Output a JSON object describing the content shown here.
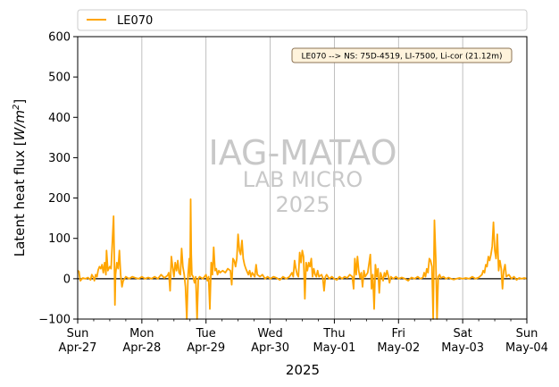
{
  "chart_data": {
    "type": "line",
    "xlabel": "2025",
    "ylabel": "Latent heat flux [W/m²]",
    "ylabel_parts": {
      "text": "Latent heat flux [",
      "unit": "W/m",
      "sup": "2",
      "close": "]"
    },
    "ylim": [
      -100,
      600
    ],
    "yticks": [
      -100,
      0,
      100,
      200,
      300,
      400,
      500,
      600
    ],
    "xlim_days": [
      0,
      7
    ],
    "xticks": [
      {
        "day": 0,
        "weekday": "Sun",
        "date": "Apr-27"
      },
      {
        "day": 1,
        "weekday": "Mon",
        "date": "Apr-28"
      },
      {
        "day": 2,
        "weekday": "Tue",
        "date": "Apr-29"
      },
      {
        "day": 3,
        "weekday": "Wed",
        "date": "Apr-30"
      },
      {
        "day": 4,
        "weekday": "Thu",
        "date": "May-01"
      },
      {
        "day": 5,
        "weekday": "Fri",
        "date": "May-02"
      },
      {
        "day": 6,
        "weekday": "Sat",
        "date": "May-03"
      },
      {
        "day": 7,
        "weekday": "Sun",
        "date": "May-04"
      }
    ],
    "vertical_grid": true,
    "zero_line": true,
    "legend": {
      "position": "top",
      "entries": [
        {
          "name": "LE070",
          "color": "#ffa500"
        }
      ]
    },
    "annotation": "LE070 --> NS: 75D-4519, LI-7500, Li-cor (21.12m)",
    "watermark": [
      "IAG-MATAO",
      "LAB MICRO",
      "2025"
    ],
    "series": [
      {
        "name": "LE070",
        "color": "#ffa500",
        "points": [
          [
            0.0,
            20
          ],
          [
            0.02,
            18
          ],
          [
            0.04,
            -5
          ],
          [
            0.08,
            2
          ],
          [
            0.12,
            0
          ],
          [
            0.16,
            3
          ],
          [
            0.2,
            -3
          ],
          [
            0.22,
            10
          ],
          [
            0.24,
            5
          ],
          [
            0.26,
            -5
          ],
          [
            0.28,
            10
          ],
          [
            0.3,
            5
          ],
          [
            0.32,
            22
          ],
          [
            0.34,
            30
          ],
          [
            0.36,
            25
          ],
          [
            0.38,
            35
          ],
          [
            0.4,
            15
          ],
          [
            0.42,
            40
          ],
          [
            0.44,
            10
          ],
          [
            0.45,
            70
          ],
          [
            0.47,
            20
          ],
          [
            0.5,
            30
          ],
          [
            0.52,
            25
          ],
          [
            0.56,
            155
          ],
          [
            0.57,
            50
          ],
          [
            0.58,
            -65
          ],
          [
            0.59,
            10
          ],
          [
            0.61,
            40
          ],
          [
            0.63,
            25
          ],
          [
            0.65,
            70
          ],
          [
            0.67,
            10
          ],
          [
            0.69,
            -20
          ],
          [
            0.71,
            -5
          ],
          [
            0.75,
            5
          ],
          [
            0.8,
            0
          ],
          [
            0.85,
            5
          ],
          [
            0.9,
            2
          ],
          [
            0.95,
            0
          ],
          [
            1.0,
            5
          ],
          [
            1.05,
            0
          ],
          [
            1.1,
            3
          ],
          [
            1.15,
            0
          ],
          [
            1.2,
            5
          ],
          [
            1.25,
            0
          ],
          [
            1.3,
            10
          ],
          [
            1.35,
            2
          ],
          [
            1.4,
            8
          ],
          [
            1.42,
            15
          ],
          [
            1.44,
            -30
          ],
          [
            1.46,
            55
          ],
          [
            1.48,
            30
          ],
          [
            1.5,
            5
          ],
          [
            1.52,
            40
          ],
          [
            1.54,
            20
          ],
          [
            1.56,
            45
          ],
          [
            1.58,
            15
          ],
          [
            1.6,
            10
          ],
          [
            1.62,
            75
          ],
          [
            1.64,
            30
          ],
          [
            1.66,
            10
          ],
          [
            1.68,
            -20
          ],
          [
            1.7,
            -100
          ],
          [
            1.72,
            10
          ],
          [
            1.74,
            50
          ],
          [
            1.75,
            5
          ],
          [
            1.76,
            197
          ],
          [
            1.77,
            60
          ],
          [
            1.78,
            10
          ],
          [
            1.8,
            5
          ],
          [
            1.82,
            -10
          ],
          [
            1.84,
            5
          ],
          [
            1.86,
            -100
          ],
          [
            1.88,
            0
          ],
          [
            1.9,
            5
          ],
          [
            1.95,
            0
          ],
          [
            2.0,
            10
          ],
          [
            2.02,
            -5
          ],
          [
            2.04,
            5
          ],
          [
            2.06,
            -75
          ],
          [
            2.08,
            40
          ],
          [
            2.1,
            10
          ],
          [
            2.12,
            78
          ],
          [
            2.14,
            20
          ],
          [
            2.16,
            25
          ],
          [
            2.18,
            10
          ],
          [
            2.2,
            20
          ],
          [
            2.22,
            15
          ],
          [
            2.26,
            20
          ],
          [
            2.3,
            15
          ],
          [
            2.34,
            25
          ],
          [
            2.38,
            20
          ],
          [
            2.4,
            -15
          ],
          [
            2.42,
            50
          ],
          [
            2.44,
            45
          ],
          [
            2.46,
            30
          ],
          [
            2.48,
            50
          ],
          [
            2.5,
            110
          ],
          [
            2.52,
            70
          ],
          [
            2.54,
            60
          ],
          [
            2.56,
            95
          ],
          [
            2.58,
            50
          ],
          [
            2.6,
            35
          ],
          [
            2.62,
            25
          ],
          [
            2.66,
            10
          ],
          [
            2.68,
            20
          ],
          [
            2.7,
            5
          ],
          [
            2.72,
            15
          ],
          [
            2.76,
            5
          ],
          [
            2.78,
            35
          ],
          [
            2.8,
            10
          ],
          [
            2.84,
            5
          ],
          [
            2.88,
            10
          ],
          [
            2.92,
            0
          ],
          [
            2.96,
            5
          ],
          [
            3.0,
            0
          ],
          [
            3.05,
            5
          ],
          [
            3.1,
            2
          ],
          [
            3.15,
            -3
          ],
          [
            3.2,
            5
          ],
          [
            3.25,
            0
          ],
          [
            3.3,
            5
          ],
          [
            3.34,
            15
          ],
          [
            3.36,
            5
          ],
          [
            3.38,
            45
          ],
          [
            3.4,
            25
          ],
          [
            3.42,
            10
          ],
          [
            3.44,
            5
          ],
          [
            3.46,
            65
          ],
          [
            3.48,
            40
          ],
          [
            3.5,
            70
          ],
          [
            3.52,
            55
          ],
          [
            3.54,
            -50
          ],
          [
            3.56,
            40
          ],
          [
            3.58,
            20
          ],
          [
            3.6,
            40
          ],
          [
            3.62,
            30
          ],
          [
            3.64,
            50
          ],
          [
            3.66,
            5
          ],
          [
            3.68,
            25
          ],
          [
            3.7,
            10
          ],
          [
            3.72,
            5
          ],
          [
            3.74,
            20
          ],
          [
            3.76,
            5
          ],
          [
            3.8,
            10
          ],
          [
            3.82,
            2
          ],
          [
            3.84,
            -30
          ],
          [
            3.86,
            5
          ],
          [
            3.88,
            10
          ],
          [
            3.92,
            0
          ],
          [
            3.96,
            5
          ],
          [
            4.0,
            0
          ],
          [
            4.04,
            -3
          ],
          [
            4.08,
            5
          ],
          [
            4.12,
            0
          ],
          [
            4.16,
            5
          ],
          [
            4.2,
            2
          ],
          [
            4.24,
            10
          ],
          [
            4.28,
            5
          ],
          [
            4.3,
            -25
          ],
          [
            4.32,
            50
          ],
          [
            4.34,
            10
          ],
          [
            4.36,
            55
          ],
          [
            4.38,
            20
          ],
          [
            4.4,
            2
          ],
          [
            4.42,
            15
          ],
          [
            4.44,
            -20
          ],
          [
            4.46,
            20
          ],
          [
            4.48,
            5
          ],
          [
            4.5,
            10
          ],
          [
            4.52,
            15
          ],
          [
            4.56,
            60
          ],
          [
            4.58,
            -25
          ],
          [
            4.6,
            10
          ],
          [
            4.62,
            -75
          ],
          [
            4.64,
            35
          ],
          [
            4.66,
            5
          ],
          [
            4.68,
            25
          ],
          [
            4.7,
            -35
          ],
          [
            4.72,
            15
          ],
          [
            4.74,
            5
          ],
          [
            4.76,
            -5
          ],
          [
            4.78,
            15
          ],
          [
            4.8,
            5
          ],
          [
            4.82,
            20
          ],
          [
            4.84,
            8
          ],
          [
            4.86,
            -10
          ],
          [
            4.88,
            5
          ],
          [
            4.92,
            0
          ],
          [
            4.96,
            5
          ],
          [
            5.0,
            0
          ],
          [
            5.05,
            3
          ],
          [
            5.1,
            0
          ],
          [
            5.15,
            -5
          ],
          [
            5.2,
            3
          ],
          [
            5.25,
            0
          ],
          [
            5.3,
            5
          ],
          [
            5.34,
            0
          ],
          [
            5.38,
            3
          ],
          [
            5.4,
            15
          ],
          [
            5.42,
            5
          ],
          [
            5.44,
            25
          ],
          [
            5.46,
            15
          ],
          [
            5.48,
            50
          ],
          [
            5.5,
            45
          ],
          [
            5.52,
            30
          ],
          [
            5.54,
            -100
          ],
          [
            5.56,
            145
          ],
          [
            5.58,
            50
          ],
          [
            5.6,
            -100
          ],
          [
            5.62,
            5
          ],
          [
            5.64,
            10
          ],
          [
            5.66,
            2
          ],
          [
            5.7,
            5
          ],
          [
            5.74,
            0
          ],
          [
            5.78,
            3
          ],
          [
            5.82,
            0
          ],
          [
            5.86,
            -2
          ],
          [
            5.9,
            0
          ],
          [
            5.95,
            2
          ],
          [
            6.0,
            0
          ],
          [
            6.05,
            2
          ],
          [
            6.1,
            0
          ],
          [
            6.15,
            5
          ],
          [
            6.2,
            0
          ],
          [
            6.25,
            3
          ],
          [
            6.3,
            10
          ],
          [
            6.32,
            20
          ],
          [
            6.34,
            15
          ],
          [
            6.36,
            35
          ],
          [
            6.38,
            30
          ],
          [
            6.4,
            55
          ],
          [
            6.42,
            45
          ],
          [
            6.44,
            60
          ],
          [
            6.46,
            80
          ],
          [
            6.48,
            140
          ],
          [
            6.5,
            70
          ],
          [
            6.52,
            50
          ],
          [
            6.54,
            110
          ],
          [
            6.56,
            20
          ],
          [
            6.58,
            45
          ],
          [
            6.6,
            25
          ],
          [
            6.62,
            -25
          ],
          [
            6.64,
            20
          ],
          [
            6.66,
            35
          ],
          [
            6.68,
            5
          ],
          [
            6.72,
            10
          ],
          [
            6.76,
            0
          ],
          [
            6.8,
            5
          ],
          [
            6.84,
            -3
          ],
          [
            6.88,
            2
          ],
          [
            6.92,
            0
          ],
          [
            6.96,
            2
          ],
          [
            7.0,
            0
          ]
        ]
      }
    ]
  }
}
